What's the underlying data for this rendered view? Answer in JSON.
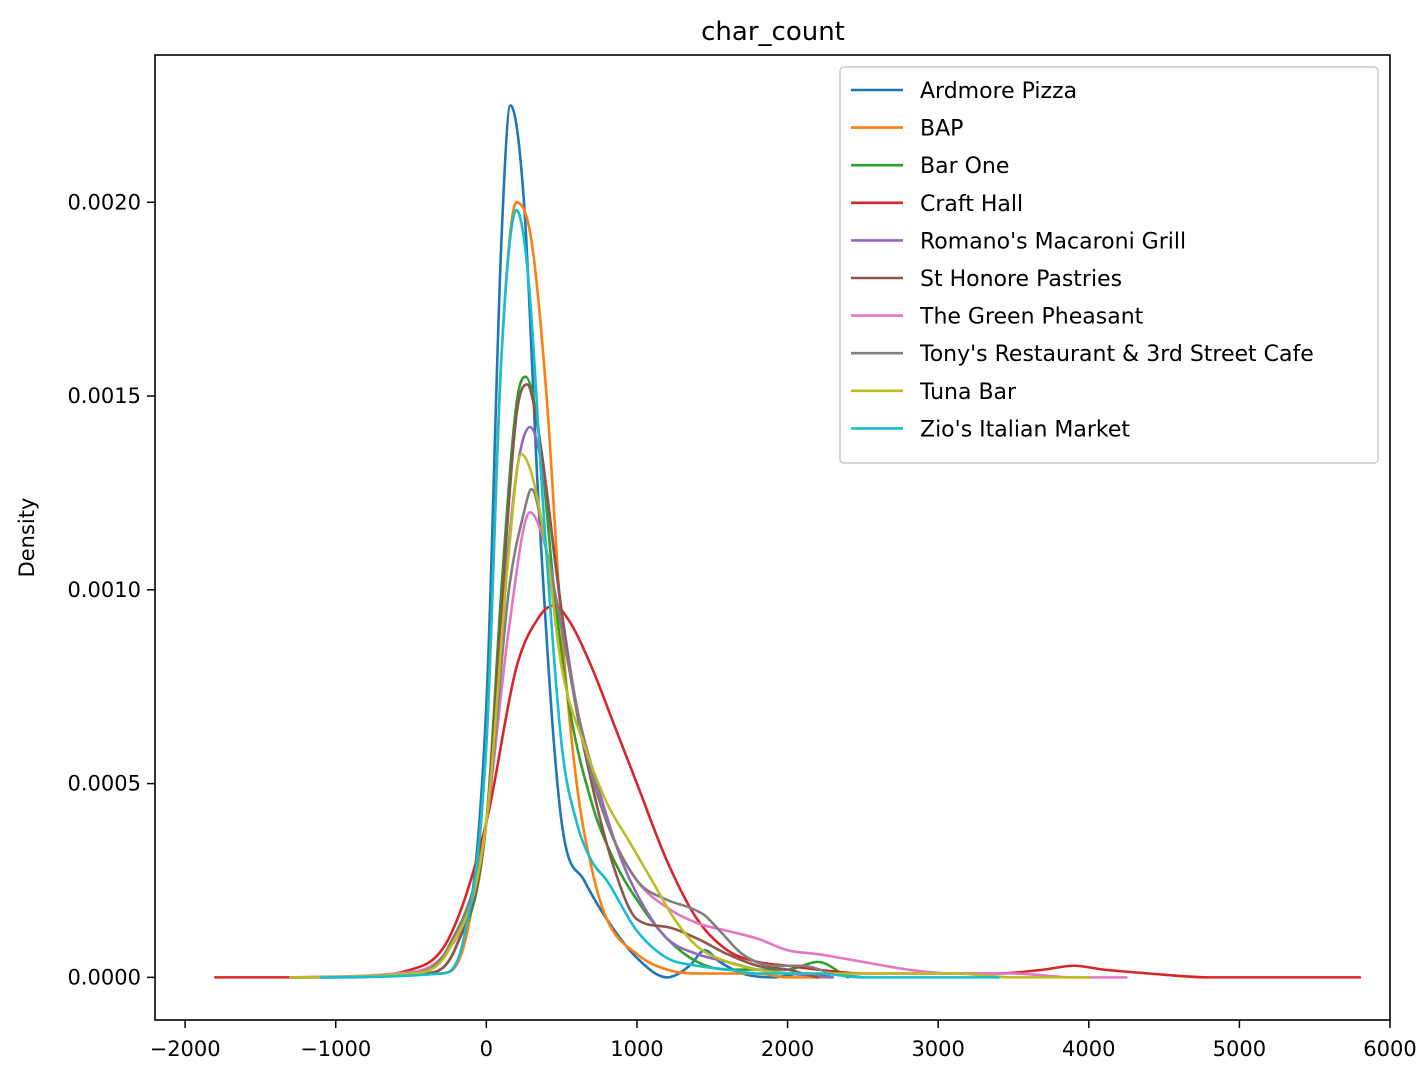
{
  "chart_data": {
    "type": "line",
    "title": "char_count",
    "xlabel": "",
    "ylabel": "Density",
    "xlim": [
      -2200,
      6000
    ],
    "ylim": [
      -0.00011,
      0.00238
    ],
    "xticks": [
      -2000,
      -1000,
      0,
      1000,
      2000,
      3000,
      4000,
      5000,
      6000
    ],
    "xtick_labels": [
      "−2000",
      "−1000",
      "0",
      "1000",
      "2000",
      "3000",
      "4000",
      "5000",
      "6000"
    ],
    "yticks": [
      0,
      0.0005,
      0.001,
      0.0015,
      0.002
    ],
    "ytick_labels": [
      "0.0000",
      "0.0005",
      "0.0010",
      "0.0015",
      "0.0020"
    ],
    "grid": false,
    "legend_position": "top-right",
    "series": [
      {
        "name": "Ardmore Pizza",
        "color": "#1f77b4",
        "x": [
          -1100,
          -300,
          -150,
          0,
          100,
          160,
          250,
          350,
          500,
          650,
          800,
          1000,
          1200,
          1350,
          1450,
          1550,
          1700,
          1900,
          2100,
          2300
        ],
        "y": [
          0,
          1e-05,
          9e-05,
          0.0007,
          0.0019,
          0.00225,
          0.002,
          0.0012,
          0.0004,
          0.00025,
          0.00015,
          5e-05,
          0.0,
          3e-05,
          7e-05,
          4e-05,
          1e-05,
          0,
          1e-05,
          0
        ]
      },
      {
        "name": "BAP",
        "color": "#ff7f0e",
        "x": [
          -1100,
          -300,
          -150,
          0,
          100,
          200,
          300,
          400,
          500,
          600,
          700,
          800,
          1000,
          1200,
          1400,
          1600,
          1800,
          2000,
          2300
        ],
        "y": [
          0,
          1e-05,
          8e-05,
          0.0006,
          0.0016,
          0.002,
          0.0019,
          0.0015,
          0.0009,
          0.0005,
          0.00028,
          0.00015,
          6e-05,
          2e-05,
          1e-05,
          1e-05,
          1e-05,
          0,
          0
        ]
      },
      {
        "name": "Bar One",
        "color": "#2ca02c",
        "x": [
          -1300,
          -400,
          -200,
          0,
          100,
          200,
          260,
          350,
          450,
          550,
          700,
          850,
          1000,
          1200,
          1400,
          1600,
          1800,
          2000,
          2200,
          2400
        ],
        "y": [
          0,
          1e-05,
          8e-05,
          0.0004,
          0.001,
          0.00148,
          0.00155,
          0.0014,
          0.001,
          0.0007,
          0.00045,
          0.0003,
          0.0002,
          0.0001,
          4e-05,
          2e-05,
          2e-05,
          2e-05,
          4e-05,
          0
        ]
      },
      {
        "name": "Craft Hall",
        "color": "#d62728",
        "x": [
          -1800,
          -1000,
          -500,
          -250,
          0,
          200,
          350,
          450,
          550,
          700,
          850,
          1000,
          1200,
          1400,
          1600,
          1800,
          2000,
          2200,
          2500,
          2800,
          3100,
          3400,
          3700,
          3900,
          4100,
          4400,
          4800,
          5800
        ],
        "y": [
          0,
          0,
          2e-05,
          0.0001,
          0.0004,
          0.0008,
          0.00093,
          0.00096,
          0.00092,
          0.0008,
          0.00065,
          0.0005,
          0.0003,
          0.00015,
          7e-05,
          4e-05,
          3e-05,
          2e-05,
          1e-05,
          1e-05,
          1e-05,
          1e-05,
          2e-05,
          3e-05,
          2e-05,
          1e-05,
          0,
          0
        ]
      },
      {
        "name": "Romano's Macaroni Grill",
        "color": "#9467bd",
        "x": [
          -1300,
          -400,
          -200,
          0,
          100,
          200,
          290,
          380,
          480,
          600,
          750,
          900,
          1050,
          1200,
          1400,
          1600,
          1800,
          2000,
          2300
        ],
        "y": [
          0,
          1e-05,
          8e-05,
          0.0004,
          0.0009,
          0.0013,
          0.00142,
          0.0013,
          0.001,
          0.0007,
          0.00048,
          0.0003,
          0.00018,
          0.0001,
          6e-05,
          4e-05,
          2e-05,
          1e-05,
          0
        ]
      },
      {
        "name": "St Honore Pastries",
        "color": "#8c564b",
        "x": [
          -1300,
          -400,
          -200,
          0,
          100,
          200,
          270,
          350,
          450,
          550,
          700,
          850,
          1000,
          1200,
          1400,
          1600,
          1800,
          2000,
          2200
        ],
        "y": [
          0,
          1e-05,
          8e-05,
          0.0004,
          0.00095,
          0.00145,
          0.00153,
          0.0014,
          0.0011,
          0.0008,
          0.0005,
          0.00028,
          0.00015,
          0.00013,
          0.0001,
          6e-05,
          3e-05,
          2e-05,
          0
        ]
      },
      {
        "name": "The Green Pheasant",
        "color": "#e377c2",
        "x": [
          -1300,
          -600,
          -300,
          -100,
          0,
          150,
          290,
          400,
          500,
          650,
          800,
          1000,
          1200,
          1400,
          1600,
          1800,
          2000,
          2200,
          2500,
          2800,
          3100,
          3500,
          3900,
          4250
        ],
        "y": [
          0,
          1e-05,
          5e-05,
          0.0002,
          0.0004,
          0.0009,
          0.0012,
          0.0011,
          0.0009,
          0.0006,
          0.0004,
          0.00025,
          0.00018,
          0.00014,
          0.00012,
          0.0001,
          7e-05,
          6e-05,
          4e-05,
          2e-05,
          1e-05,
          1e-05,
          0,
          0
        ]
      },
      {
        "name": "Tony's Restaurant & 3rd Street Cafe",
        "color": "#7f7f7f",
        "x": [
          -1300,
          -500,
          -250,
          0,
          150,
          250,
          300,
          400,
          500,
          650,
          800,
          1000,
          1200,
          1350,
          1450,
          1550,
          1700,
          1900,
          2100,
          2300,
          2500
        ],
        "y": [
          0,
          1e-05,
          8e-05,
          0.0004,
          0.001,
          0.0012,
          0.00126,
          0.0011,
          0.0009,
          0.0006,
          0.0004,
          0.00025,
          0.0002,
          0.00018,
          0.00016,
          0.00012,
          6e-05,
          3e-05,
          3e-05,
          1e-05,
          0
        ]
      },
      {
        "name": "Tuna Bar",
        "color": "#bcbd22",
        "x": [
          -1300,
          -500,
          -250,
          0,
          150,
          230,
          300,
          400,
          500,
          650,
          800,
          950,
          1100,
          1250,
          1400,
          1600,
          1800,
          2000,
          2300,
          2700,
          3100,
          3500,
          4000
        ],
        "y": [
          0,
          1e-05,
          7e-05,
          0.0004,
          0.0011,
          0.00135,
          0.0013,
          0.0011,
          0.0008,
          0.0006,
          0.00045,
          0.00035,
          0.00025,
          0.00015,
          8e-05,
          4e-05,
          2e-05,
          1e-05,
          1e-05,
          1e-05,
          1e-05,
          0,
          0
        ]
      },
      {
        "name": "Zio's Italian Market",
        "color": "#17becf",
        "x": [
          -1100,
          -300,
          -150,
          0,
          100,
          200,
          280,
          380,
          500,
          600,
          700,
          800,
          1000,
          1200,
          1400,
          1600,
          1800,
          2000,
          2200,
          2500,
          3000,
          3400
        ],
        "y": [
          0,
          1e-05,
          0.0001,
          0.0006,
          0.0016,
          0.00198,
          0.0018,
          0.0012,
          0.0006,
          0.0004,
          0.0003,
          0.00025,
          0.00012,
          5e-05,
          3e-05,
          2e-05,
          1e-05,
          1e-05,
          1e-05,
          0,
          0,
          0
        ]
      }
    ]
  }
}
